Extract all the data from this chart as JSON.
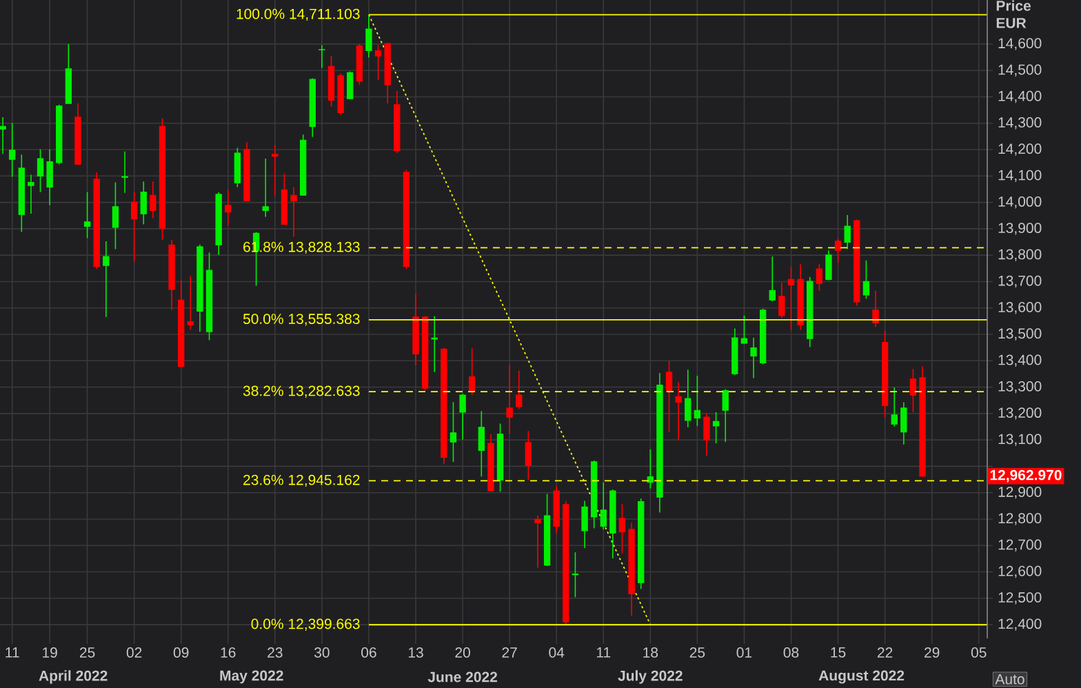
{
  "chart_data": {
    "type": "candlestick",
    "categories": [
      null,
      "11",
      null,
      null,
      null,
      "19",
      null,
      null,
      null,
      "25",
      null,
      null,
      null,
      null,
      "02",
      null,
      null,
      null,
      null,
      "09",
      null,
      null,
      null,
      null,
      "16",
      null,
      null,
      null,
      null,
      "23",
      null,
      null,
      null,
      null,
      "30",
      null,
      null,
      null,
      null,
      "06",
      null,
      null,
      null,
      null,
      "13",
      null,
      null,
      null,
      null,
      "20",
      null,
      null,
      null,
      null,
      "27",
      null,
      null,
      null,
      null,
      "04",
      null,
      null,
      null,
      null,
      "11",
      null,
      null,
      null,
      null,
      "18",
      null,
      null,
      null,
      null,
      "25",
      null,
      null,
      null,
      null,
      "01",
      null,
      null,
      null,
      null,
      "08",
      null,
      null,
      null,
      null,
      "15",
      null,
      null,
      null,
      null,
      "22",
      null,
      null,
      null,
      null,
      "29",
      null,
      null,
      null,
      null,
      "05"
    ],
    "ohlc": [
      [
        14278,
        14323,
        14184,
        14288
      ],
      [
        14163,
        14301,
        14097,
        14198
      ],
      [
        13954,
        14181,
        13888,
        14130
      ],
      [
        14064,
        14105,
        13957,
        14076
      ],
      [
        14100,
        14201,
        14039,
        14166
      ],
      [
        14058,
        14201,
        13989,
        14154
      ],
      [
        14151,
        14370,
        14144,
        14365
      ],
      [
        14375,
        14600,
        14375,
        14506
      ],
      [
        14323,
        14375,
        14144,
        14144
      ],
      [
        13909,
        14039,
        13865,
        13926
      ],
      [
        14088,
        14114,
        13748,
        13757
      ],
      [
        13761,
        13853,
        13566,
        13795
      ],
      [
        13905,
        14076,
        13823,
        13984
      ],
      [
        14095,
        14193,
        14036,
        14098
      ],
      [
        14001,
        14039,
        13775,
        13937
      ],
      [
        13957,
        14079,
        13917,
        14039
      ],
      [
        14027,
        14079,
        13940,
        13969
      ],
      [
        14288,
        14318,
        13858,
        13902
      ],
      [
        13839,
        13858,
        13592,
        13670
      ],
      [
        13630,
        13705,
        13378,
        13378
      ],
      [
        13548,
        13722,
        13517,
        13536
      ],
      [
        13588,
        13840,
        13510,
        13832
      ],
      [
        13510,
        13810,
        13478,
        13743
      ],
      [
        13839,
        14039,
        13801,
        14031
      ],
      [
        13989,
        14048,
        13914,
        13963
      ],
      [
        14074,
        14207,
        14058,
        14187
      ],
      [
        14201,
        14228,
        14006,
        14006
      ],
      [
        13818,
        13888,
        13684,
        13883
      ],
      [
        13969,
        14166,
        13945,
        13984
      ],
      [
        14182,
        14217,
        14027,
        14175
      ],
      [
        14048,
        14109,
        13917,
        13917
      ],
      [
        14027,
        14058,
        13870,
        14006
      ],
      [
        14027,
        14257,
        14027,
        14236
      ],
      [
        14288,
        14470,
        14248,
        14466
      ],
      [
        14578,
        14596,
        14510,
        14579
      ],
      [
        14515,
        14555,
        14363,
        14387
      ],
      [
        14480,
        14489,
        14332,
        14340
      ],
      [
        14393,
        14496,
        14393,
        14492
      ],
      [
        14593,
        14602,
        14445,
        14459
      ],
      [
        14575,
        14711.103,
        14549,
        14657
      ],
      [
        14575,
        14596,
        14463,
        14555
      ],
      [
        14602,
        14605,
        14375,
        14445
      ],
      [
        14370,
        14422,
        14187,
        14196
      ],
      [
        14114,
        14123,
        13748,
        13757
      ],
      [
        13566,
        13653,
        13383,
        13426
      ],
      [
        13566,
        13569,
        13287,
        13296
      ],
      [
        13482,
        13569,
        13357,
        13486
      ],
      [
        13444,
        13448,
        13008,
        13034
      ],
      [
        13092,
        13243,
        13017,
        13127
      ],
      [
        13205,
        13275,
        13101,
        13270
      ],
      [
        13339,
        13447,
        13270,
        13284
      ],
      [
        13060,
        13209,
        12961,
        13148
      ],
      [
        13087,
        13122,
        12907,
        12907
      ],
      [
        12948,
        13162,
        12904,
        13122
      ],
      [
        13221,
        13383,
        13122,
        13186
      ],
      [
        13270,
        13362,
        13217,
        13226
      ],
      [
        13090,
        13134,
        12948,
        13003
      ],
      [
        12799,
        12813,
        12616,
        12786
      ],
      [
        12625,
        12895,
        12622,
        12813
      ],
      [
        12907,
        12925,
        12747,
        12773
      ],
      [
        12855,
        12869,
        12399.663,
        12410
      ],
      [
        12589,
        12674,
        12504,
        12592
      ],
      [
        12756,
        12869,
        12690,
        12846
      ],
      [
        12808,
        13022,
        12765,
        13017
      ],
      [
        12773,
        12939,
        12761,
        12834
      ],
      [
        12747,
        12912,
        12651,
        12907
      ],
      [
        12803,
        12857,
        12669,
        12751
      ],
      [
        12761,
        12786,
        12434,
        12517
      ],
      [
        12559,
        12878,
        12535,
        12866
      ],
      [
        12939,
        13064,
        12916,
        12960
      ],
      [
        12883,
        13353,
        12825,
        13308
      ],
      [
        13357,
        13400,
        13130,
        13284
      ],
      [
        13264,
        13319,
        13099,
        13243
      ],
      [
        13174,
        13366,
        13148,
        13257
      ],
      [
        13183,
        13343,
        13153,
        13212
      ],
      [
        13186,
        13200,
        13040,
        13099
      ],
      [
        13153,
        13205,
        13087,
        13170
      ],
      [
        13212,
        13292,
        13092,
        13287
      ],
      [
        13351,
        13522,
        13346,
        13487
      ],
      [
        13466,
        13571,
        13465,
        13484
      ],
      [
        13418,
        13487,
        13334,
        13449
      ],
      [
        13392,
        13597,
        13386,
        13592
      ],
      [
        13630,
        13795,
        13625,
        13666
      ],
      [
        13644,
        13696,
        13562,
        13571
      ],
      [
        13708,
        13754,
        13517,
        13687
      ],
      [
        13708,
        13766,
        13517,
        13536
      ],
      [
        13484,
        13717,
        13452,
        13701
      ],
      [
        13748,
        13766,
        13665,
        13693
      ],
      [
        13708,
        13818,
        13705,
        13801
      ],
      [
        13853,
        13862,
        13771,
        13818
      ],
      [
        13849,
        13952,
        13823,
        13910
      ],
      [
        13931,
        13935,
        13609,
        13623
      ],
      [
        13649,
        13780,
        13635,
        13700
      ],
      [
        13592,
        13665,
        13528,
        13543
      ],
      [
        13470,
        13513,
        13186,
        13230
      ],
      [
        13160,
        13299,
        13151,
        13195
      ],
      [
        13130,
        13243,
        13083,
        13221
      ],
      [
        13331,
        13369,
        13205,
        13270
      ],
      [
        13336,
        13379,
        12960,
        12962.97
      ],
      null,
      null,
      null,
      null,
      null,
      null
    ],
    "series": [
      {
        "type": "line",
        "x": [
          "06",
          "18"
        ],
        "values": [
          14711.103,
          12399.663
        ],
        "color": "#ffff00",
        "line_style": "dotted"
      }
    ],
    "ylim": [
      12348,
      14767
    ],
    "yticks": [
      {
        "value": 12400,
        "label": "12,400"
      },
      {
        "value": 12500,
        "label": "12,500"
      },
      {
        "value": 12600,
        "label": "12,600"
      },
      {
        "value": 12700,
        "label": "12,700"
      },
      {
        "value": 12800,
        "label": "12,800"
      },
      {
        "value": 12900,
        "label": "12,900"
      },
      {
        "value": 13000,
        "label": null
      },
      {
        "value": 13100,
        "label": "13,100"
      },
      {
        "value": 13200,
        "label": "13,200"
      },
      {
        "value": 13300,
        "label": "13,300"
      },
      {
        "value": 13400,
        "label": "13,400"
      },
      {
        "value": 13500,
        "label": "13,500"
      },
      {
        "value": 13600,
        "label": "13,600"
      },
      {
        "value": 13700,
        "label": "13,700"
      },
      {
        "value": 13800,
        "label": "13,800"
      },
      {
        "value": 13900,
        "label": "13,900"
      },
      {
        "value": 14000,
        "label": "14,000"
      },
      {
        "value": 14100,
        "label": "14,100"
      },
      {
        "value": 14200,
        "label": "14,200"
      },
      {
        "value": 14300,
        "label": "14,300"
      },
      {
        "value": 14400,
        "label": "14,400"
      },
      {
        "value": 14500,
        "label": "14,500"
      },
      {
        "value": 14600,
        "label": "14,600"
      }
    ],
    "ylabel": "Price EUR",
    "grid": true,
    "ref_lines": [
      {
        "axis": "y",
        "value": 14711.103,
        "label": "100.0% 14,711.103",
        "color": "#ffff00",
        "line_style": "solid"
      },
      {
        "axis": "y",
        "value": 13828.133,
        "label": "61.8% 13,828.133",
        "color": "#ffff00",
        "line_style": "dashed"
      },
      {
        "axis": "y",
        "value": 13555.383,
        "label": "50.0% 13,555.383",
        "color": "#ffff00",
        "line_style": "solid"
      },
      {
        "axis": "y",
        "value": 13282.633,
        "label": "38.2% 13,282.633",
        "color": "#ffff00",
        "line_style": "dashed"
      },
      {
        "axis": "y",
        "value": 12945.162,
        "label": "23.6% 12,945.162",
        "color": "#ffff00",
        "line_style": "dashed"
      },
      {
        "axis": "y",
        "value": 12399.663,
        "label": "0.0% 12,399.663",
        "color": "#ffff00",
        "line_style": "solid"
      }
    ],
    "annotations": [
      "April 2022",
      "May 2022",
      "June 2022",
      "July 2022",
      "August 2022",
      "12,962.970",
      "Auto"
    ]
  }
}
